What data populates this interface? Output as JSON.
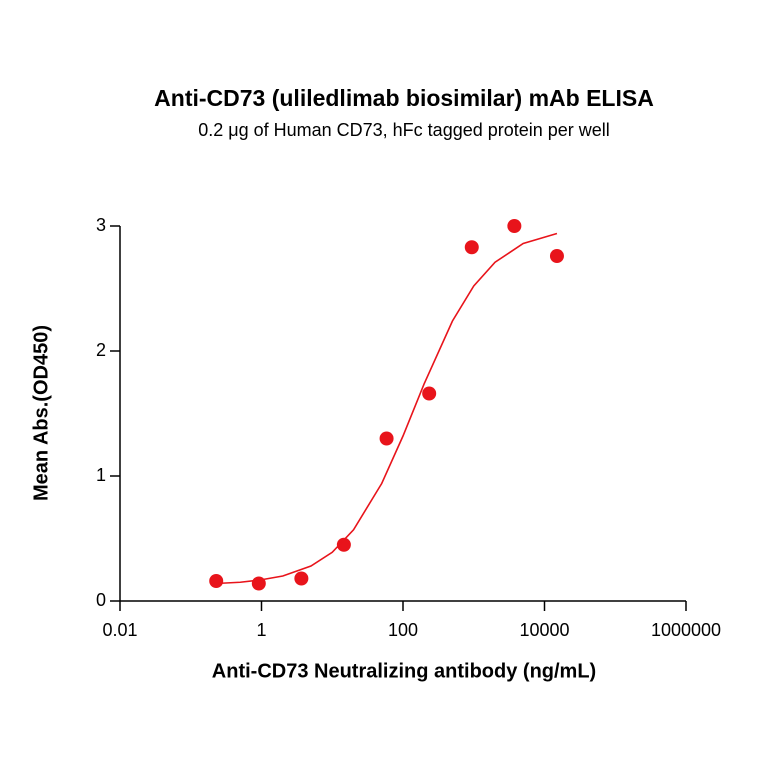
{
  "chart_data": {
    "type": "scatter",
    "title": "Anti-CD73 (uliledlimab biosimilar) mAb ELISA",
    "subtitle": "0.2 μg of Human CD73, hFc tagged protein per well",
    "x_label": "Anti-CD73 Neutralizing antibody (ng/mL)",
    "y_label": "Mean Abs.(OD450)",
    "x_scale": "log",
    "xlim": [
      0.01,
      1000000
    ],
    "xticks": [
      0.01,
      1,
      100,
      10000,
      1000000
    ],
    "ylim": [
      0,
      3
    ],
    "yticks": [
      0,
      1,
      2,
      3
    ],
    "grid": false,
    "series": [
      {
        "type": "scatter",
        "color": "#e8141b",
        "x": [
          0.229,
          0.916,
          3.66,
          14.6,
          58.6,
          234.4,
          937.5,
          3750,
          15000
        ],
        "values": [
          0.16,
          0.14,
          0.18,
          0.45,
          1.3,
          1.66,
          2.83,
          3.0,
          2.76
        ]
      },
      {
        "type": "line",
        "color": "#e8141b",
        "x": [
          0.229,
          0.5,
          1,
          2,
          5,
          10,
          20,
          50,
          100,
          200,
          500,
          1000,
          2000,
          5000,
          15000
        ],
        "values": [
          0.14,
          0.15,
          0.17,
          0.2,
          0.28,
          0.39,
          0.57,
          0.94,
          1.32,
          1.74,
          2.24,
          2.52,
          2.71,
          2.86,
          2.94
        ]
      }
    ]
  }
}
